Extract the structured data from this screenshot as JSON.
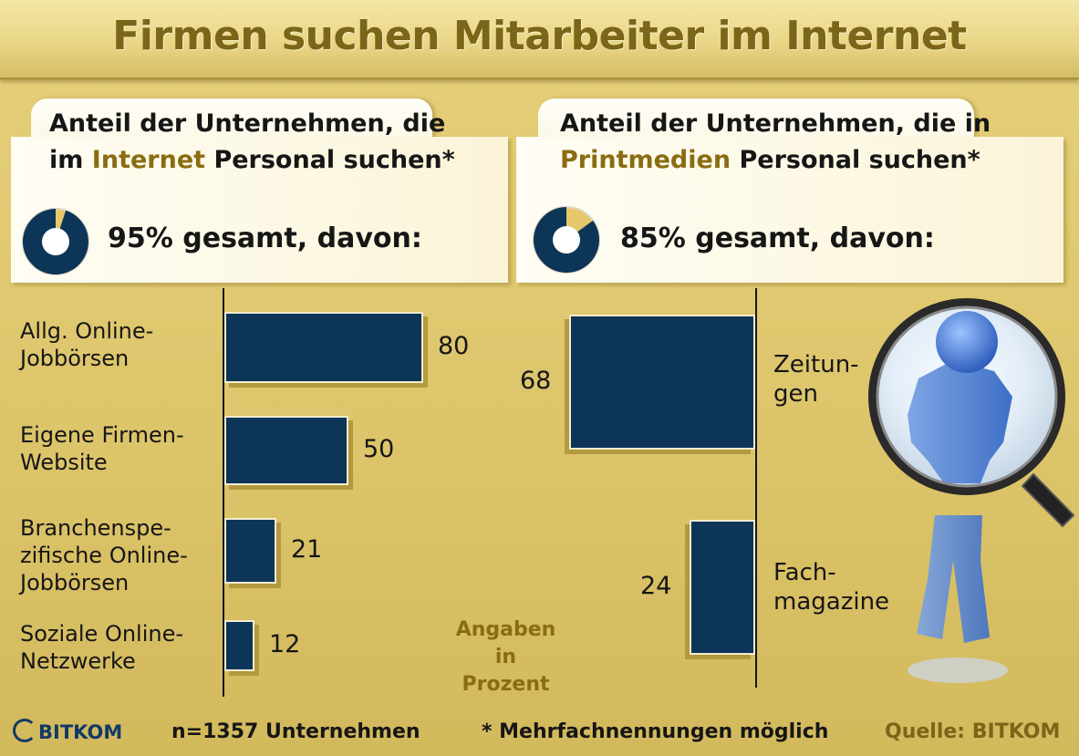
{
  "title": "Firmen suchen Mitarbeiter im Internet",
  "colors": {
    "bar": "#0d3558",
    "bar_shadow": "#b49a3f",
    "accent": "#8a6d12",
    "donut_rest": "#e6c86a"
  },
  "left_panel": {
    "heading_line1": "Anteil der Unternehmen, die",
    "heading_pre": "im ",
    "heading_accent": "Internet",
    "heading_post": " Personal suchen*",
    "summary": "95% gesamt, davon:",
    "donut_value": 95
  },
  "right_panel": {
    "heading_line1": "Anteil der Unternehmen, die in",
    "heading_accent": "Printmedien",
    "heading_post": " Personal suchen*",
    "summary": "85% gesamt, davon:",
    "donut_value": 85
  },
  "units_note": {
    "line1": "Angaben",
    "line2": "in Prozent"
  },
  "footer": {
    "logo": "BITKOM",
    "sample": "n=1357 Unternehmen",
    "note": "* Mehrfachnennungen möglich",
    "source": "Quelle: BITKOM"
  },
  "chart_data": [
    {
      "type": "bar",
      "orientation": "horizontal",
      "title": "Anteil der Unternehmen, die im Internet Personal suchen*",
      "categories": [
        "Allg. Online-Jobbörsen",
        "Eigene Firmen-Website",
        "Branchenspezifische Online-Jobbörsen",
        "Soziale Online-Netzwerke"
      ],
      "category_lines": [
        [
          "Allg. Online-",
          "Jobbörsen"
        ],
        [
          "Eigene Firmen-",
          "Website"
        ],
        [
          "Branchenspe-",
          "zifische Online-",
          "Jobbörsen"
        ],
        [
          "Soziale Online-",
          "Netzwerke"
        ]
      ],
      "values": [
        80,
        50,
        21,
        12
      ],
      "unit": "Prozent",
      "xlim": [
        0,
        100
      ]
    },
    {
      "type": "bar",
      "orientation": "horizontal",
      "title": "Anteil der Unternehmen, die in Printmedien Personal suchen*",
      "categories": [
        "Zeitungen",
        "Fachmagazine"
      ],
      "category_lines": [
        [
          "Zeitun-",
          "gen"
        ],
        [
          "Fach-",
          "magazine"
        ]
      ],
      "values": [
        68,
        24
      ],
      "unit": "Prozent",
      "xlim": [
        0,
        100
      ]
    }
  ]
}
